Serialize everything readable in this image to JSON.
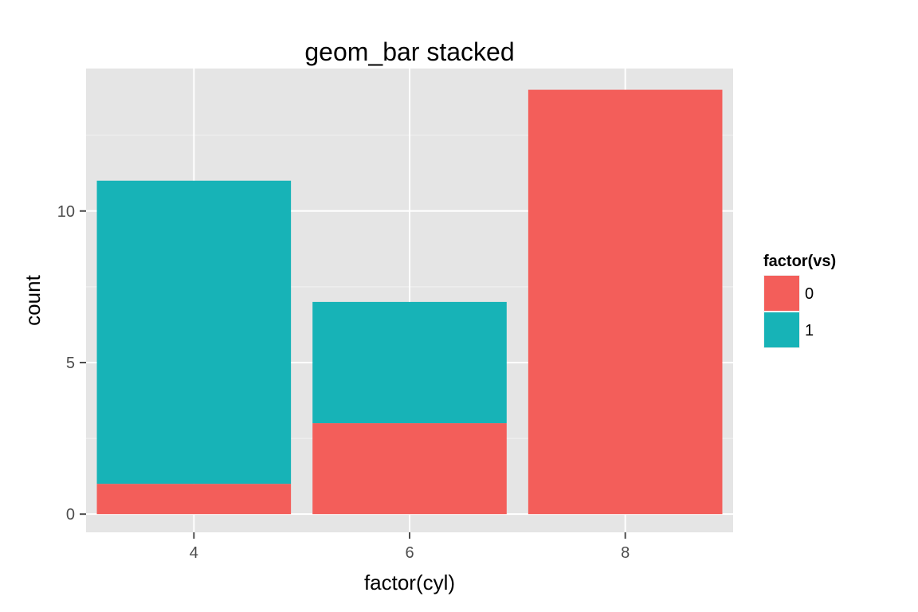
{
  "chart_data": {
    "type": "bar",
    "stacked": true,
    "title": "geom_bar stacked",
    "xlabel": "factor(cyl)",
    "ylabel": "count",
    "categories": [
      "4",
      "6",
      "8"
    ],
    "series": [
      {
        "name": "0",
        "color": "#F35E5A",
        "values": [
          1,
          3,
          14
        ]
      },
      {
        "name": "1",
        "color": "#17B3B7",
        "values": [
          10,
          4,
          0
        ]
      }
    ],
    "ylim": [
      -0.6,
      14.7
    ],
    "yticks": [
      0,
      5,
      10
    ],
    "grid": true,
    "legend": {
      "title": "factor(vs)",
      "placement": "right"
    }
  }
}
